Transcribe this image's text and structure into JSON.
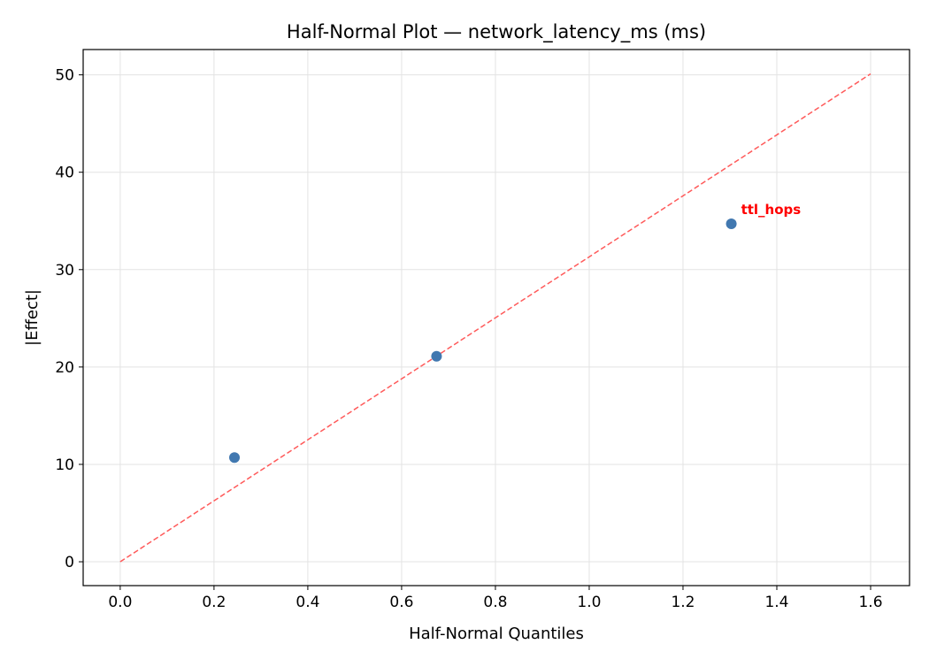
{
  "chart_data": {
    "type": "scatter",
    "title": "Half-Normal Plot — network_latency_ms (ms)",
    "xlabel": "Half-Normal Quantiles",
    "ylabel": "|Effect|",
    "xlim": [
      -0.079,
      1.683
    ],
    "ylim": [
      -2.45,
      52.6
    ],
    "xticks": [
      0.0,
      0.2,
      0.4,
      0.6,
      0.8,
      1.0,
      1.2,
      1.4,
      1.6
    ],
    "xtick_labels": [
      "0.0",
      "0.2",
      "0.4",
      "0.6",
      "0.8",
      "1.0",
      "1.2",
      "1.4",
      "1.6"
    ],
    "yticks": [
      0,
      10,
      20,
      30,
      40,
      50
    ],
    "ytick_labels": [
      "0",
      "10",
      "20",
      "30",
      "40",
      "50"
    ],
    "grid": true,
    "points": [
      {
        "x": 0.2436,
        "y": 10.7,
        "label": ""
      },
      {
        "x": 0.6745,
        "y": 21.1,
        "label": ""
      },
      {
        "x": 1.303,
        "y": 34.7,
        "label": "ttl_hops"
      }
    ],
    "reference_line": {
      "x": [
        0.0,
        1.6
      ],
      "y": [
        0.0,
        50.1
      ],
      "style": "dashed"
    },
    "colors": {
      "points": "#4178b0",
      "reference_line": "#ff5a5a",
      "annotation": "#ff0000",
      "grid": "#e3e3e3"
    }
  }
}
